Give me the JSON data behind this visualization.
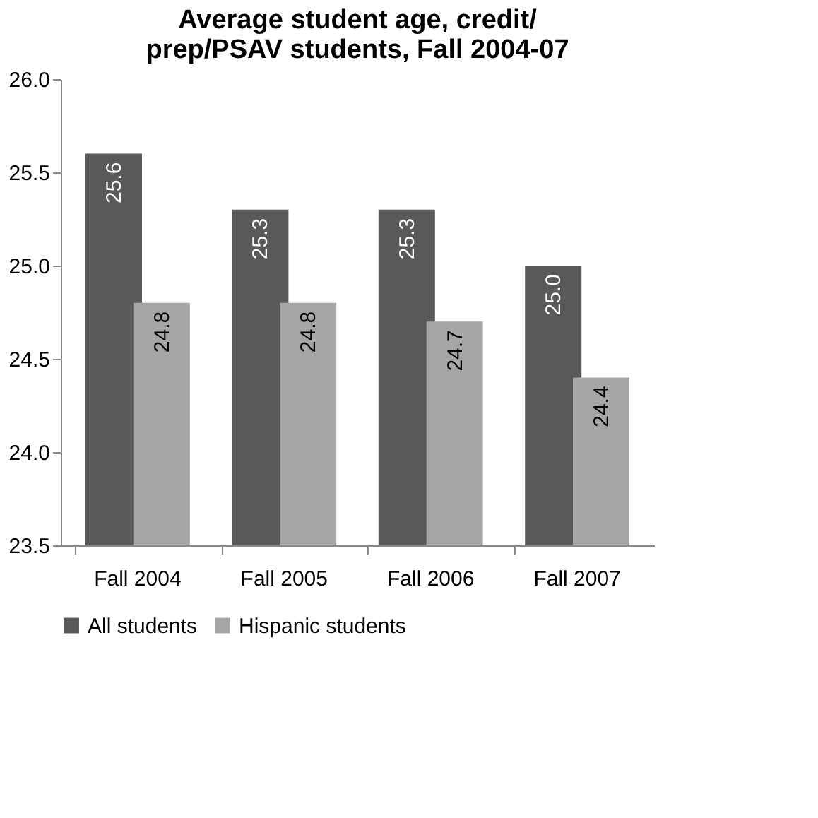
{
  "chart_data": {
    "type": "bar",
    "title": "Average student age, credit/\nprep/PSAV students, Fall 2004-07",
    "categories": [
      "Fall 2004",
      "Fall 2005",
      "Fall 2006",
      "Fall 2007"
    ],
    "series": [
      {
        "name": "All students",
        "color": "#595959",
        "values": [
          25.6,
          25.3,
          25.3,
          25.0
        ],
        "value_labels": [
          "25.6",
          "25.3",
          "25.3",
          "25.0"
        ]
      },
      {
        "name": "Hispanic students",
        "color": "#a6a6a6",
        "values": [
          24.8,
          24.8,
          24.7,
          24.4
        ],
        "value_labels": [
          "24.8",
          "24.8",
          "24.7",
          "24.4"
        ]
      }
    ],
    "ylim": [
      23.5,
      26.0
    ],
    "yticks": [
      23.5,
      {
        "value": 24,
        "label": "24.0"
      },
      24.5,
      {
        "value": 25,
        "label": "25.0"
      },
      25.5,
      {
        "value": 26,
        "label": "26.0"
      }
    ],
    "grid": false,
    "legend": "bottom"
  }
}
